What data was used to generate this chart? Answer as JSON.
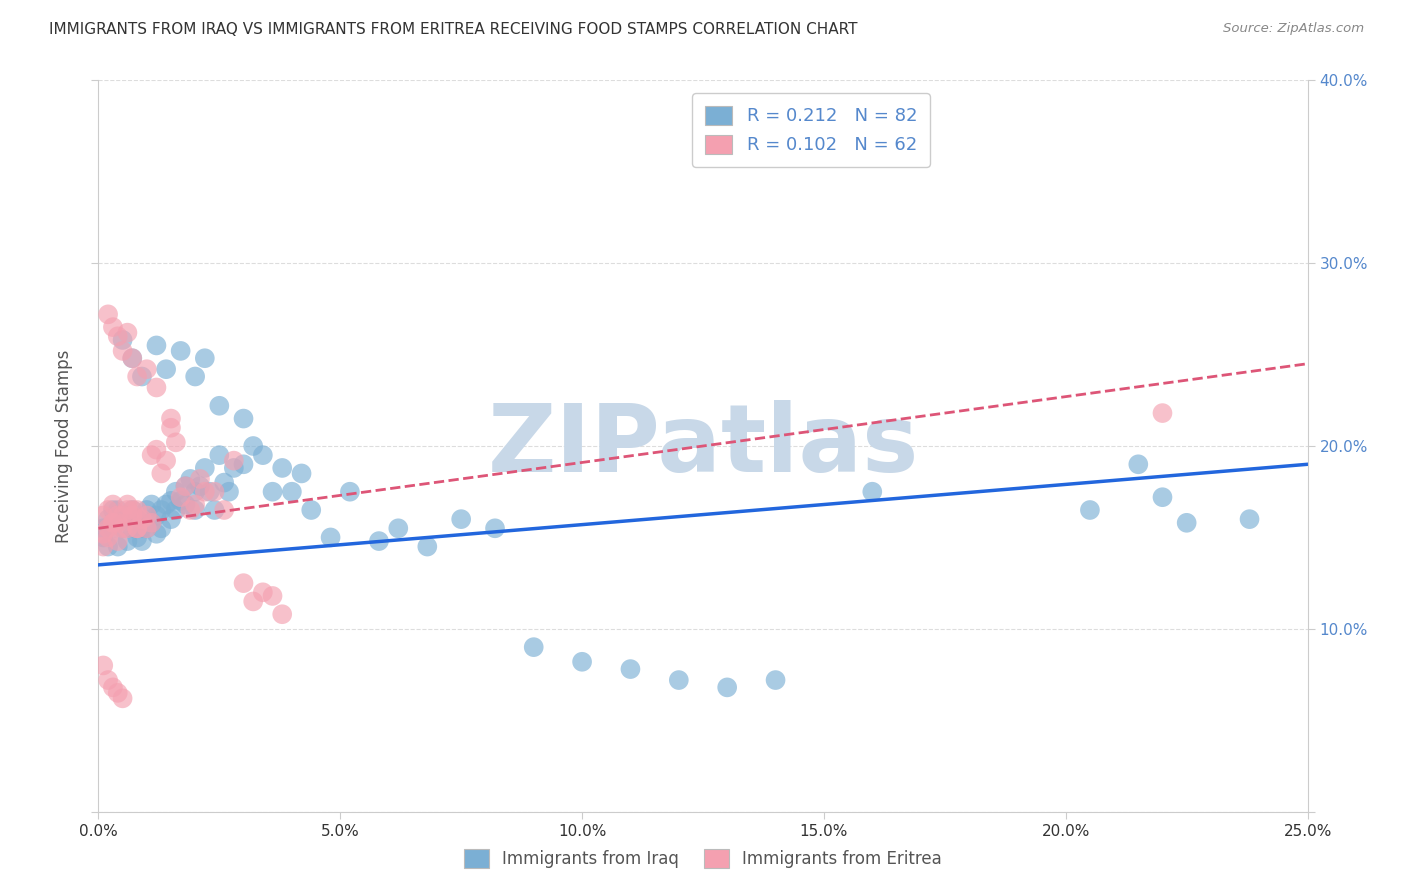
{
  "title": "IMMIGRANTS FROM IRAQ VS IMMIGRANTS FROM ERITREA RECEIVING FOOD STAMPS CORRELATION CHART",
  "source": "Source: ZipAtlas.com",
  "ylabel": "Receiving Food Stamps",
  "legend_label_iraq": "Immigrants from Iraq",
  "legend_label_eritrea": "Immigrants from Eritrea",
  "R_iraq": 0.212,
  "N_iraq": 82,
  "R_eritrea": 0.102,
  "N_eritrea": 62,
  "xlim": [
    0.0,
    0.25
  ],
  "ylim": [
    0.0,
    0.4
  ],
  "xticks": [
    0.0,
    0.05,
    0.1,
    0.15,
    0.2,
    0.25
  ],
  "yticks": [
    0.0,
    0.1,
    0.2,
    0.3,
    0.4
  ],
  "xtick_labels": [
    "0.0%",
    "5.0%",
    "10.0%",
    "15.0%",
    "20.0%",
    "25.0%"
  ],
  "ytick_labels": [
    "",
    "10.0%",
    "20.0%",
    "30.0%",
    "40.0%"
  ],
  "color_iraq": "#7bafd4",
  "color_eritrea": "#f4a0b0",
  "trendline_iraq_color": "#2266dd",
  "trendline_eritrea_color": "#dd5577",
  "background_color": "#ffffff",
  "grid_color": "#dddddd",
  "title_color": "#333333",
  "axis_label_color": "#555555",
  "tick_label_color_right": "#5588cc",
  "tick_label_color_bottom": "#333333",
  "watermark": "ZIPatlas",
  "watermark_color": "#c8d8e8",
  "iraq_x": [
    0.001,
    0.001,
    0.002,
    0.002,
    0.003,
    0.003,
    0.004,
    0.004,
    0.005,
    0.005,
    0.006,
    0.006,
    0.007,
    0.007,
    0.008,
    0.008,
    0.009,
    0.009,
    0.01,
    0.01,
    0.011,
    0.011,
    0.012,
    0.012,
    0.013,
    0.013,
    0.014,
    0.015,
    0.015,
    0.016,
    0.016,
    0.017,
    0.018,
    0.018,
    0.019,
    0.02,
    0.02,
    0.021,
    0.022,
    0.023,
    0.024,
    0.025,
    0.026,
    0.027,
    0.028,
    0.03,
    0.032,
    0.034,
    0.036,
    0.038,
    0.04,
    0.042,
    0.044,
    0.048,
    0.052,
    0.058,
    0.062,
    0.068,
    0.075,
    0.082,
    0.09,
    0.1,
    0.11,
    0.12,
    0.13,
    0.14,
    0.005,
    0.007,
    0.009,
    0.012,
    0.014,
    0.017,
    0.02,
    0.022,
    0.025,
    0.03,
    0.16,
    0.205,
    0.215,
    0.22,
    0.225,
    0.238
  ],
  "iraq_y": [
    0.15,
    0.155,
    0.145,
    0.16,
    0.155,
    0.165,
    0.145,
    0.165,
    0.155,
    0.16,
    0.148,
    0.162,
    0.155,
    0.165,
    0.15,
    0.16,
    0.155,
    0.148,
    0.155,
    0.165,
    0.158,
    0.168,
    0.152,
    0.162,
    0.155,
    0.165,
    0.168,
    0.16,
    0.17,
    0.165,
    0.175,
    0.17,
    0.178,
    0.168,
    0.182,
    0.175,
    0.165,
    0.178,
    0.188,
    0.175,
    0.165,
    0.195,
    0.18,
    0.175,
    0.188,
    0.19,
    0.2,
    0.195,
    0.175,
    0.188,
    0.175,
    0.185,
    0.165,
    0.15,
    0.175,
    0.148,
    0.155,
    0.145,
    0.16,
    0.155,
    0.09,
    0.082,
    0.078,
    0.072,
    0.068,
    0.072,
    0.258,
    0.248,
    0.238,
    0.255,
    0.242,
    0.252,
    0.238,
    0.248,
    0.222,
    0.215,
    0.175,
    0.165,
    0.19,
    0.172,
    0.158,
    0.16
  ],
  "eritrea_x": [
    0.001,
    0.001,
    0.002,
    0.002,
    0.003,
    0.003,
    0.004,
    0.004,
    0.005,
    0.005,
    0.006,
    0.006,
    0.007,
    0.007,
    0.008,
    0.008,
    0.009,
    0.01,
    0.01,
    0.011,
    0.011,
    0.012,
    0.013,
    0.014,
    0.015,
    0.016,
    0.017,
    0.018,
    0.019,
    0.02,
    0.021,
    0.022,
    0.024,
    0.026,
    0.028,
    0.03,
    0.032,
    0.034,
    0.036,
    0.038,
    0.002,
    0.003,
    0.004,
    0.005,
    0.006,
    0.007,
    0.008,
    0.01,
    0.012,
    0.015,
    0.001,
    0.002,
    0.003,
    0.004,
    0.006,
    0.008,
    0.001,
    0.002,
    0.003,
    0.004,
    0.005,
    0.22
  ],
  "eritrea_y": [
    0.162,
    0.152,
    0.165,
    0.155,
    0.168,
    0.158,
    0.162,
    0.158,
    0.162,
    0.155,
    0.168,
    0.155,
    0.165,
    0.162,
    0.155,
    0.165,
    0.16,
    0.162,
    0.155,
    0.158,
    0.195,
    0.198,
    0.185,
    0.192,
    0.21,
    0.202,
    0.172,
    0.178,
    0.165,
    0.168,
    0.182,
    0.175,
    0.175,
    0.165,
    0.192,
    0.125,
    0.115,
    0.12,
    0.118,
    0.108,
    0.272,
    0.265,
    0.26,
    0.252,
    0.262,
    0.248,
    0.238,
    0.242,
    0.232,
    0.215,
    0.145,
    0.15,
    0.158,
    0.148,
    0.165,
    0.155,
    0.08,
    0.072,
    0.068,
    0.065,
    0.062,
    0.218
  ]
}
